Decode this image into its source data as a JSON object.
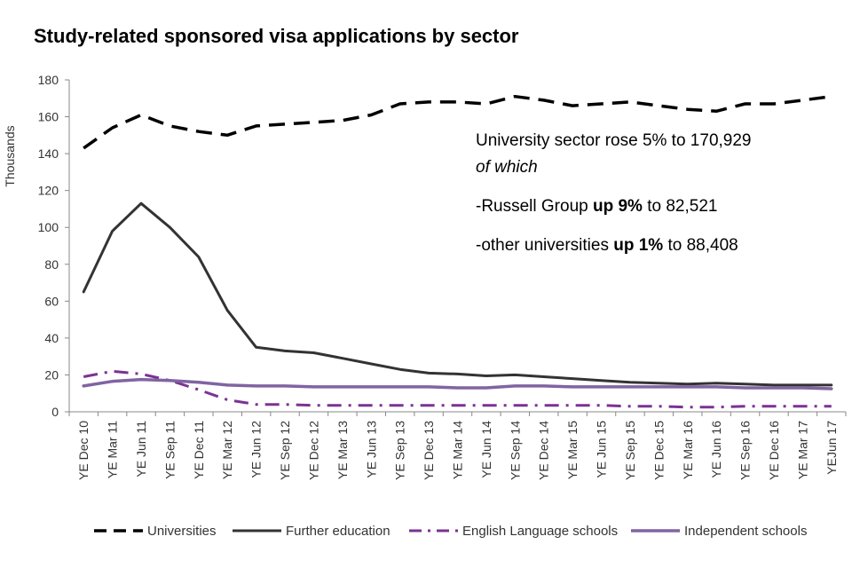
{
  "chart_data": {
    "type": "line",
    "title": "Study-related sponsored visa applications by sector",
    "ylabel": "Thousands",
    "xlabel": "",
    "ylim": [
      0,
      180
    ],
    "yticks": [
      0,
      20,
      40,
      60,
      80,
      100,
      120,
      140,
      160,
      180
    ],
    "grid": false,
    "legend_position": "bottom",
    "categories": [
      "YE Dec 10",
      "YE Mar 11",
      "YE Jun 11",
      "YE Sep 11",
      "YE Dec 11",
      "YE Mar 12",
      "YE Jun 12",
      "YE Sep 12",
      "YE Dec 12",
      "YE Mar 13",
      "YE Jun 13",
      "YE Sep 13",
      "YE Dec 13",
      "YE Mar 14",
      "YE Jun 14",
      "YE Sep 14",
      "YE Dec 14",
      "YE Mar 15",
      "YE Jun 15",
      "YE Sep 15",
      "YE Dec 15",
      "YE Mar 16",
      "YE Jun 16",
      "YE Sep 16",
      "YE Dec 16",
      "YE Mar 17",
      "YEJun 17"
    ],
    "series": [
      {
        "name": "Universities",
        "color": "#000000",
        "style": "dashed",
        "values": [
          143,
          154,
          161,
          155,
          152,
          150,
          155,
          156,
          157,
          158,
          161,
          167,
          168,
          168,
          167,
          171,
          169,
          166,
          167,
          168,
          166,
          164,
          163,
          167,
          167,
          169,
          171
        ]
      },
      {
        "name": "Further education",
        "color": "#333333",
        "style": "solid",
        "values": [
          65,
          98,
          113,
          100,
          84,
          55,
          35,
          33,
          32,
          29,
          26,
          23,
          21,
          20.5,
          19.5,
          20,
          19,
          18,
          17,
          16,
          15.5,
          15,
          15.5,
          15,
          14.5,
          14.5,
          14.5
        ]
      },
      {
        "name": "English Language schools",
        "color": "#7B3294",
        "style": "dashdot",
        "values": [
          19,
          22,
          20.5,
          17,
          12,
          6.5,
          4,
          4,
          3.5,
          3.5,
          3.5,
          3.5,
          3.5,
          3.5,
          3.5,
          3.5,
          3.5,
          3.5,
          3.5,
          3,
          3,
          2.5,
          2.5,
          3,
          3,
          3,
          3
        ]
      },
      {
        "name": "Independent schools",
        "color": "#8064A2",
        "style": "solid",
        "values": [
          14,
          16.5,
          17.5,
          17,
          16,
          14.5,
          14,
          14,
          13.5,
          13.5,
          13.5,
          13.5,
          13.5,
          13,
          13,
          14,
          14,
          13.5,
          13.5,
          13.5,
          13.5,
          13.5,
          13.5,
          13,
          13,
          13,
          12.5
        ]
      }
    ],
    "annotation": {
      "line1": "University sector rose 5% to 170,929",
      "line2": "of which",
      "line3_pre": "-Russell Group ",
      "line3_bold": "up 9%",
      "line3_post": " to 82,521",
      "line4_pre": "-other universities ",
      "line4_bold": "up 1%",
      "line4_post": " to 88,408"
    }
  }
}
